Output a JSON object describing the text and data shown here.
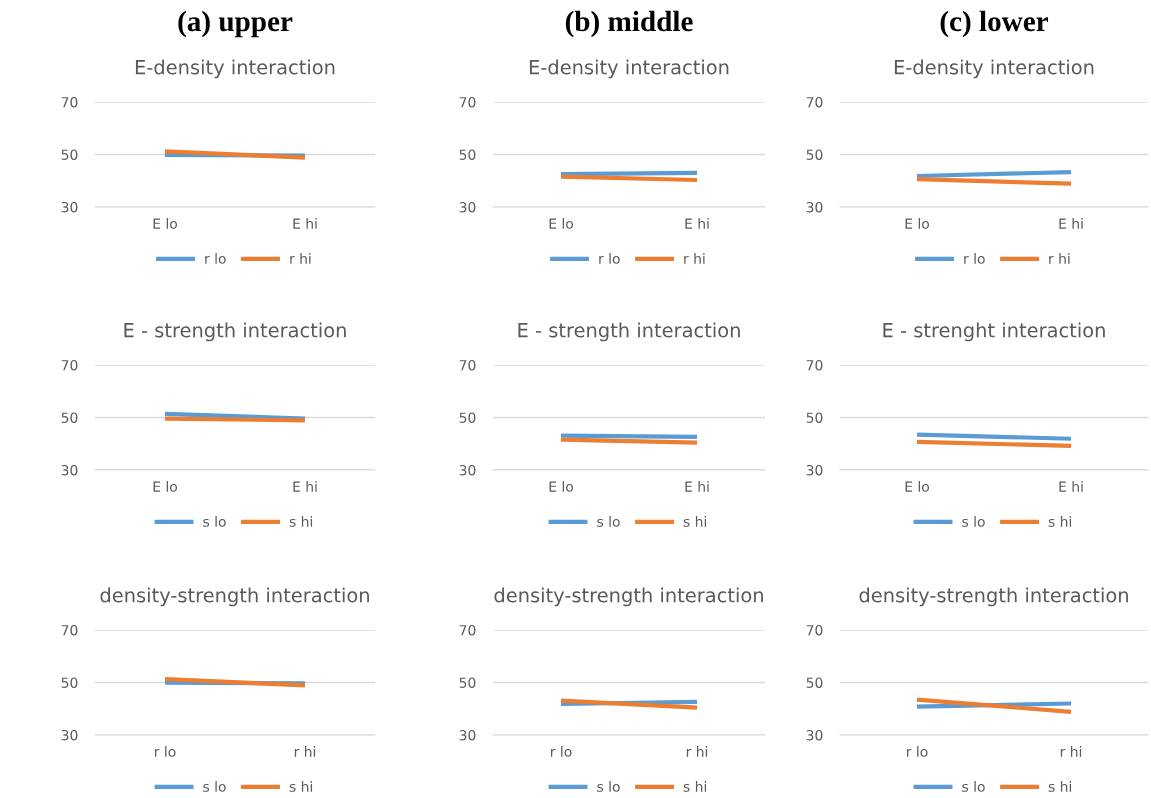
{
  "chart_data": [
    {
      "type": "line",
      "title": "(a) upper",
      "subtitle": "E-density interaction",
      "categories": [
        "E lo",
        "E hi"
      ],
      "ylim": [
        30,
        70
      ],
      "yticks": [
        30,
        50,
        70
      ],
      "grid": "y",
      "legend": "bottom",
      "marker": "none",
      "series": [
        {
          "name": "r lo",
          "color": "#5b9bd5",
          "values": [
            49.8,
            49.6
          ]
        },
        {
          "name": "r hi",
          "color": "#ed7d31",
          "values": [
            51.2,
            48.8
          ]
        }
      ]
    },
    {
      "type": "line",
      "title": "(b) middle",
      "subtitle": "E-density interaction",
      "categories": [
        "E lo",
        "E hi"
      ],
      "ylim": [
        30,
        70
      ],
      "yticks": [
        30,
        50,
        70
      ],
      "grid": "y",
      "legend": "bottom",
      "marker": "none",
      "series": [
        {
          "name": "r lo",
          "color": "#5b9bd5",
          "values": [
            42.5,
            43.0
          ]
        },
        {
          "name": "r hi",
          "color": "#ed7d31",
          "values": [
            41.6,
            40.3
          ]
        }
      ]
    },
    {
      "type": "line",
      "title": "(c) lower",
      "subtitle": "E-density interaction",
      "categories": [
        "E lo",
        "E hi"
      ],
      "ylim": [
        30,
        70
      ],
      "yticks": [
        30,
        50,
        70
      ],
      "grid": "y",
      "legend": "bottom",
      "marker": "none",
      "series": [
        {
          "name": "r lo",
          "color": "#5b9bd5",
          "values": [
            41.8,
            43.3
          ]
        },
        {
          "name": "r hi",
          "color": "#ed7d31",
          "values": [
            40.6,
            38.9
          ]
        }
      ]
    },
    {
      "type": "line",
      "title": "E - strength interaction",
      "categories": [
        "E lo",
        "E hi"
      ],
      "ylim": [
        30,
        70
      ],
      "yticks": [
        30,
        50,
        70
      ],
      "grid": "y",
      "legend": "bottom",
      "marker": "none",
      "series": [
        {
          "name": "s lo",
          "color": "#5b9bd5",
          "values": [
            51.4,
            49.6
          ]
        },
        {
          "name": "s hi",
          "color": "#ed7d31",
          "values": [
            49.6,
            48.9
          ]
        }
      ]
    },
    {
      "type": "line",
      "title": "E - strength interaction",
      "categories": [
        "E lo",
        "E hi"
      ],
      "ylim": [
        30,
        70
      ],
      "yticks": [
        30,
        50,
        70
      ],
      "grid": "y",
      "legend": "bottom",
      "marker": "none",
      "series": [
        {
          "name": "s lo",
          "color": "#5b9bd5",
          "values": [
            43.1,
            42.6
          ]
        },
        {
          "name": "s hi",
          "color": "#ed7d31",
          "values": [
            41.6,
            40.4
          ]
        }
      ]
    },
    {
      "type": "line",
      "title": "E - strenght interaction",
      "categories": [
        "E lo",
        "E hi"
      ],
      "ylim": [
        30,
        70
      ],
      "yticks": [
        30,
        50,
        70
      ],
      "grid": "y",
      "legend": "bottom",
      "marker": "none",
      "series": [
        {
          "name": "s lo",
          "color": "#5b9bd5",
          "values": [
            43.5,
            41.9
          ]
        },
        {
          "name": "s hi",
          "color": "#ed7d31",
          "values": [
            40.7,
            39.2
          ]
        }
      ]
    },
    {
      "type": "line",
      "title": "density-strength interaction",
      "categories": [
        "r lo",
        "r hi"
      ],
      "ylim": [
        30,
        70
      ],
      "yticks": [
        30,
        50,
        70
      ],
      "grid": "y",
      "legend": "bottom",
      "marker": "none",
      "series": [
        {
          "name": "s lo",
          "color": "#5b9bd5",
          "values": [
            49.9,
            49.7
          ]
        },
        {
          "name": "s hi",
          "color": "#ed7d31",
          "values": [
            51.3,
            48.9
          ]
        }
      ]
    },
    {
      "type": "line",
      "title": "density-strength interaction",
      "categories": [
        "r lo",
        "r hi"
      ],
      "ylim": [
        30,
        70
      ],
      "yticks": [
        30,
        50,
        70
      ],
      "grid": "y",
      "legend": "bottom",
      "marker": "none",
      "series": [
        {
          "name": "s lo",
          "color": "#5b9bd5",
          "values": [
            41.8,
            42.6
          ]
        },
        {
          "name": "s hi",
          "color": "#ed7d31",
          "values": [
            43.1,
            40.4
          ]
        }
      ]
    },
    {
      "type": "line",
      "title": "density-strength interaction",
      "categories": [
        "r lo",
        "r hi"
      ],
      "ylim": [
        30,
        70
      ],
      "yticks": [
        30,
        50,
        70
      ],
      "grid": "y",
      "legend": "bottom",
      "marker": "none",
      "series": [
        {
          "name": "s lo",
          "color": "#5b9bd5",
          "values": [
            40.8,
            42.0
          ]
        },
        {
          "name": "s hi",
          "color": "#ed7d31",
          "values": [
            43.5,
            38.8
          ]
        }
      ]
    }
  ]
}
